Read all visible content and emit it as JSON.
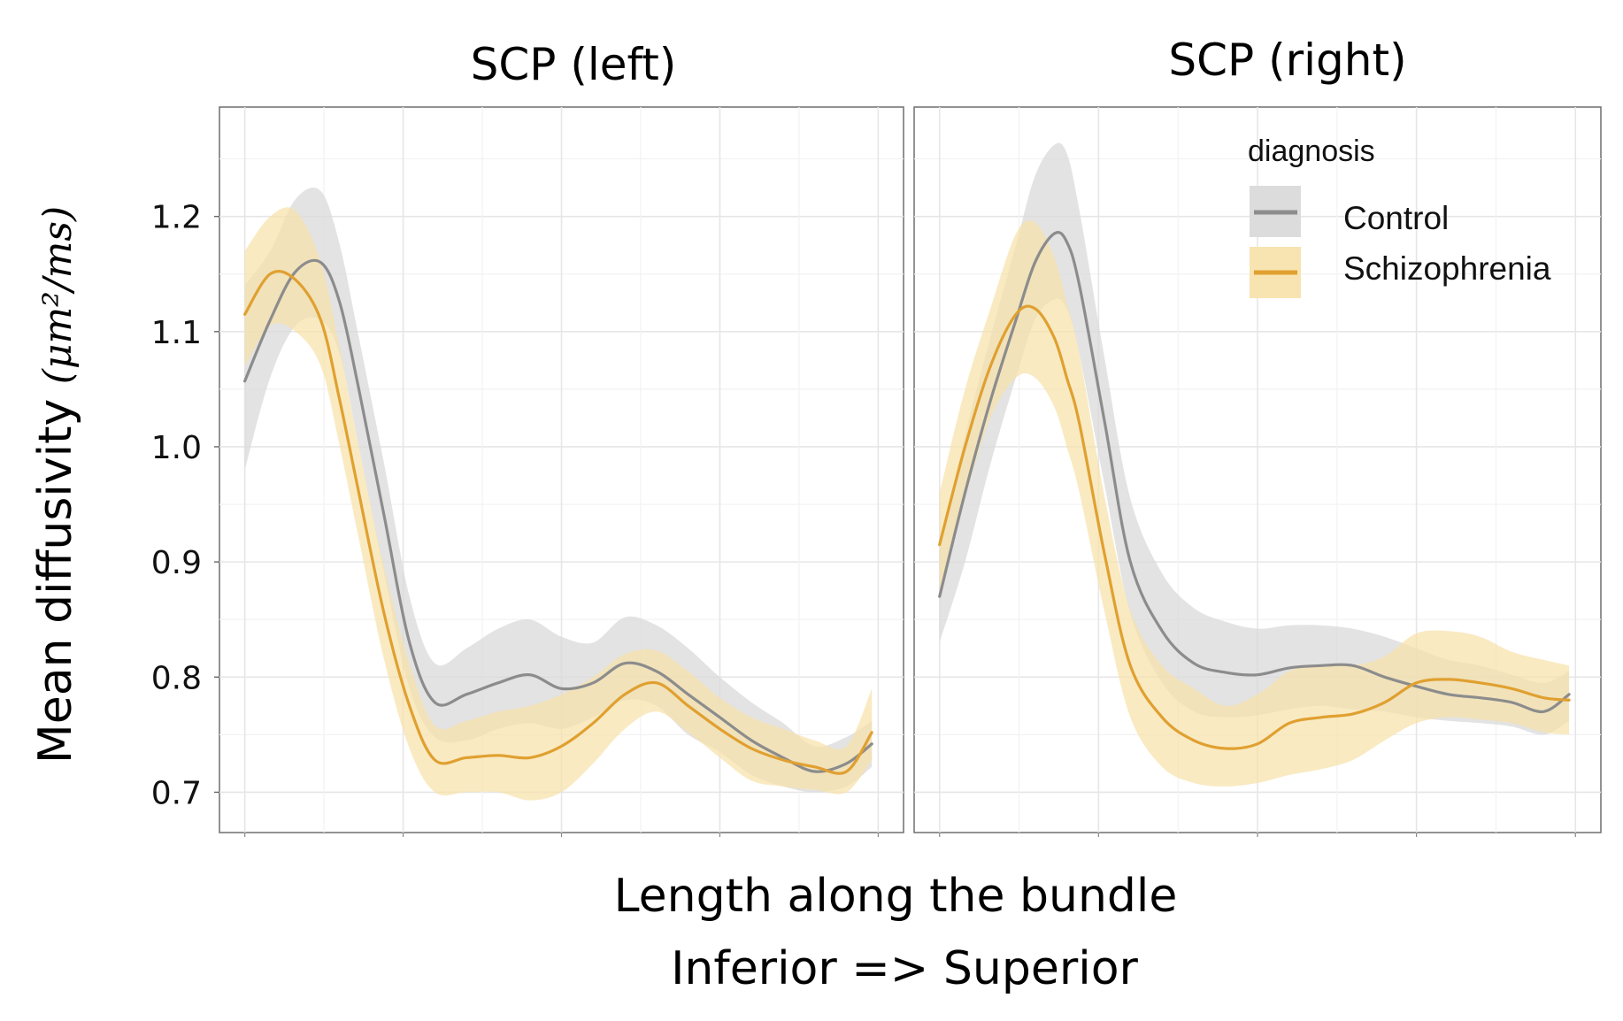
{
  "chart_data": [
    {
      "type": "line",
      "title": "SCP (left)",
      "xlabel": "Length along the bundle",
      "xlabel_line2": "Inferior => Superior",
      "ylabel": "Mean diffusivity",
      "ylabel_unit": "(μm²/ms)",
      "ylim": [
        0.665,
        1.295
      ],
      "xlim": [
        -4,
        104
      ],
      "yticks": [
        0.7,
        0.8,
        0.9,
        1.0,
        1.1,
        1.2
      ],
      "ytick_labels": [
        "0.7",
        "0.8",
        "0.9",
        "1.0",
        "1.1",
        "1.2"
      ],
      "grid": true,
      "x": [
        0,
        4,
        8,
        12,
        15,
        18,
        22,
        26,
        30,
        35,
        40,
        45,
        50,
        55,
        60,
        65,
        70,
        75,
        80,
        85,
        90,
        95,
        99
      ],
      "series": [
        {
          "name": "Control",
          "color": "#8c8c8c",
          "band_color": "#d9d9d9",
          "values": [
            1.057,
            1.11,
            1.152,
            1.16,
            1.125,
            1.05,
            0.94,
            0.83,
            0.778,
            0.785,
            0.795,
            0.802,
            0.79,
            0.795,
            0.812,
            0.805,
            0.785,
            0.765,
            0.745,
            0.73,
            0.718,
            0.725,
            0.742
          ],
          "lower": [
            0.98,
            1.06,
            1.105,
            1.11,
            1.08,
            1.0,
            0.89,
            0.79,
            0.748,
            0.745,
            0.755,
            0.76,
            0.755,
            0.765,
            0.78,
            0.775,
            0.75,
            0.735,
            0.715,
            0.705,
            0.7,
            0.705,
            0.722
          ],
          "upper": [
            1.14,
            1.17,
            1.215,
            1.222,
            1.175,
            1.095,
            0.985,
            0.87,
            0.812,
            0.825,
            0.842,
            0.85,
            0.835,
            0.83,
            0.852,
            0.845,
            0.825,
            0.8,
            0.778,
            0.76,
            0.74,
            0.748,
            0.762
          ]
        },
        {
          "name": "Schizophrenia",
          "color": "#e0a030",
          "band_color": "#f6e1a8",
          "values": [
            1.115,
            1.15,
            1.145,
            1.11,
            1.04,
            0.96,
            0.855,
            0.775,
            0.728,
            0.73,
            0.732,
            0.73,
            0.74,
            0.76,
            0.785,
            0.795,
            0.775,
            0.755,
            0.738,
            0.728,
            0.722,
            0.718,
            0.752
          ],
          "lower": [
            1.07,
            1.105,
            1.1,
            1.07,
            1.0,
            0.92,
            0.815,
            0.738,
            0.7,
            0.7,
            0.7,
            0.693,
            0.7,
            0.725,
            0.755,
            0.77,
            0.752,
            0.73,
            0.71,
            0.705,
            0.702,
            0.7,
            0.728
          ],
          "upper": [
            1.17,
            1.2,
            1.205,
            1.16,
            1.085,
            1.0,
            0.895,
            0.812,
            0.758,
            0.762,
            0.77,
            0.775,
            0.785,
            0.8,
            0.82,
            0.823,
            0.805,
            0.782,
            0.765,
            0.755,
            0.745,
            0.74,
            0.79
          ]
        }
      ]
    },
    {
      "type": "line",
      "title": "SCP (right)",
      "ylim": [
        0.665,
        1.295
      ],
      "xlim": [
        -4,
        104
      ],
      "grid": true,
      "legend": {
        "title": "diagnosis",
        "position": "top-right"
      },
      "x": [
        0,
        4,
        8,
        12,
        15,
        18,
        20,
        22,
        26,
        30,
        35,
        40,
        45,
        50,
        55,
        60,
        65,
        70,
        75,
        80,
        85,
        90,
        95,
        99
      ],
      "series": [
        {
          "name": "Control",
          "color": "#8c8c8c",
          "band_color": "#d9d9d9",
          "values": [
            0.87,
            0.96,
            1.04,
            1.11,
            1.16,
            1.185,
            1.178,
            1.14,
            1.02,
            0.9,
            0.84,
            0.812,
            0.804,
            0.802,
            0.808,
            0.81,
            0.81,
            0.8,
            0.792,
            0.785,
            0.782,
            0.778,
            0.77,
            0.785
          ],
          "lower": [
            0.83,
            0.9,
            0.985,
            1.06,
            1.11,
            1.128,
            1.12,
            1.08,
            0.965,
            0.855,
            0.795,
            0.77,
            0.765,
            0.767,
            0.772,
            0.775,
            0.772,
            0.77,
            0.765,
            0.762,
            0.76,
            0.757,
            0.75,
            0.762
          ],
          "upper": [
            0.91,
            1.01,
            1.095,
            1.175,
            1.235,
            1.262,
            1.255,
            1.205,
            1.075,
            0.955,
            0.89,
            0.86,
            0.848,
            0.842,
            0.845,
            0.845,
            0.842,
            0.835,
            0.825,
            0.815,
            0.81,
            0.802,
            0.795,
            0.805
          ]
        },
        {
          "name": "Schizophrenia",
          "color": "#e0a030",
          "band_color": "#f6e1a8",
          "values": [
            0.915,
            1.0,
            1.07,
            1.115,
            1.12,
            1.095,
            1.06,
            1.02,
            0.905,
            0.81,
            0.765,
            0.745,
            0.738,
            0.742,
            0.76,
            0.765,
            0.768,
            0.778,
            0.795,
            0.798,
            0.795,
            0.79,
            0.782,
            0.78
          ],
          "lower": [
            0.87,
            0.955,
            1.025,
            1.06,
            1.06,
            1.035,
            1.0,
            0.96,
            0.855,
            0.765,
            0.722,
            0.708,
            0.705,
            0.708,
            0.715,
            0.72,
            0.728,
            0.745,
            0.76,
            0.765,
            0.763,
            0.76,
            0.752,
            0.75
          ],
          "upper": [
            0.96,
            1.05,
            1.12,
            1.185,
            1.195,
            1.165,
            1.125,
            1.08,
            0.955,
            0.858,
            0.81,
            0.79,
            0.775,
            0.785,
            0.805,
            0.81,
            0.81,
            0.818,
            0.838,
            0.84,
            0.835,
            0.822,
            0.815,
            0.81
          ]
        }
      ]
    }
  ]
}
